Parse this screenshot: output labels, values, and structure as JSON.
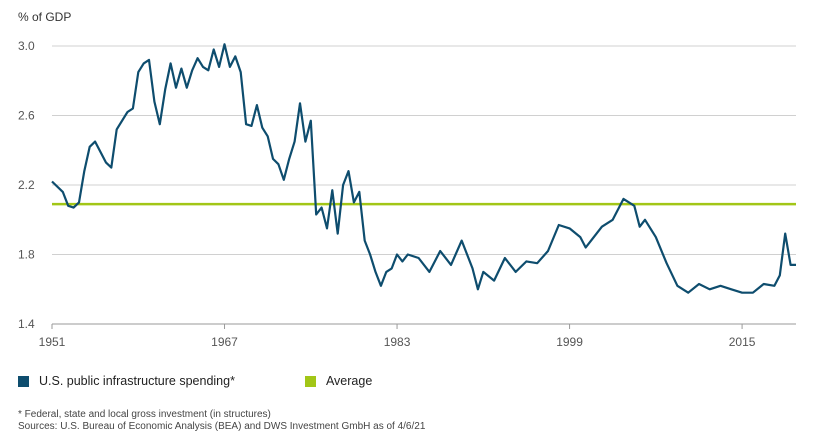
{
  "chart_data": {
    "type": "line",
    "unit_label": "% of GDP",
    "ylim": [
      1.4,
      3.0
    ],
    "yticks": [
      "1.4",
      "1.8",
      "2.2",
      "2.6",
      "3.0"
    ],
    "xlim": [
      1951,
      2020
    ],
    "xticks": [
      "1951",
      "1967",
      "1983",
      "1999",
      "2015"
    ],
    "grid": true,
    "legend_position": "bottom-left",
    "series": [
      {
        "name": "U.S. public infrastructure spending*",
        "color": "#0e4d6e",
        "x": [
          1951,
          1952,
          1952.5,
          1953,
          1953.5,
          1954,
          1954.5,
          1955,
          1956,
          1956.5,
          1957,
          1958,
          1958.5,
          1959,
          1959.5,
          1960,
          1960.5,
          1961,
          1961.5,
          1962,
          1962.5,
          1963,
          1963.5,
          1964,
          1964.5,
          1965,
          1965.5,
          1966,
          1966.5,
          1967,
          1967.5,
          1968,
          1968.5,
          1969,
          1969.5,
          1970,
          1970.5,
          1971,
          1971.5,
          1972,
          1972.5,
          1973,
          1973.5,
          1974,
          1974.5,
          1975,
          1975.5,
          1976,
          1976.5,
          1977,
          1977.5,
          1978,
          1978.5,
          1979,
          1979.5,
          1980,
          1980.5,
          1981,
          1981.5,
          1982,
          1982.5,
          1983,
          1983.5,
          1984,
          1985,
          1986,
          1987,
          1988,
          1989,
          1990,
          1990.5,
          1991,
          1992,
          1993,
          1994,
          1995,
          1996,
          1997,
          1998,
          1999,
          2000,
          2000.5,
          2001,
          2002,
          2003,
          2004,
          2005,
          2005.5,
          2006,
          2007,
          2008,
          2009,
          2010,
          2011,
          2012,
          2013,
          2014,
          2015,
          2016,
          2017,
          2018,
          2018.5,
          2019,
          2019.5,
          2020
        ],
        "y": [
          2.22,
          2.16,
          2.08,
          2.07,
          2.1,
          2.28,
          2.42,
          2.45,
          2.33,
          2.3,
          2.52,
          2.62,
          2.64,
          2.85,
          2.9,
          2.92,
          2.68,
          2.55,
          2.75,
          2.9,
          2.76,
          2.87,
          2.76,
          2.86,
          2.93,
          2.88,
          2.86,
          2.98,
          2.88,
          3.01,
          2.88,
          2.94,
          2.85,
          2.55,
          2.54,
          2.66,
          2.53,
          2.48,
          2.35,
          2.32,
          2.23,
          2.35,
          2.45,
          2.67,
          2.45,
          2.57,
          2.03,
          2.07,
          1.95,
          2.17,
          1.92,
          2.2,
          2.28,
          2.1,
          2.16,
          1.88,
          1.8,
          1.7,
          1.62,
          1.7,
          1.72,
          1.8,
          1.76,
          1.8,
          1.78,
          1.7,
          1.82,
          1.74,
          1.88,
          1.72,
          1.6,
          1.7,
          1.65,
          1.78,
          1.7,
          1.76,
          1.75,
          1.82,
          1.97,
          1.95,
          1.9,
          1.84,
          1.88,
          1.96,
          2.0,
          2.12,
          2.08,
          1.96,
          2.0,
          1.9,
          1.75,
          1.62,
          1.58,
          1.63,
          1.6,
          1.62,
          1.6,
          1.58,
          1.58,
          1.63,
          1.62,
          1.68,
          1.92,
          1.74,
          1.74
        ]
      },
      {
        "name": "Average",
        "color": "#a2c617",
        "x": [
          1951,
          2020
        ],
        "y": [
          2.09,
          2.09
        ]
      }
    ]
  },
  "footnote": "* Federal, state and local gross investment (in structures)",
  "sources": "Sources: U.S. Bureau of Economic Analysis (BEA) and DWS Investment GmbH as of 4/6/21"
}
